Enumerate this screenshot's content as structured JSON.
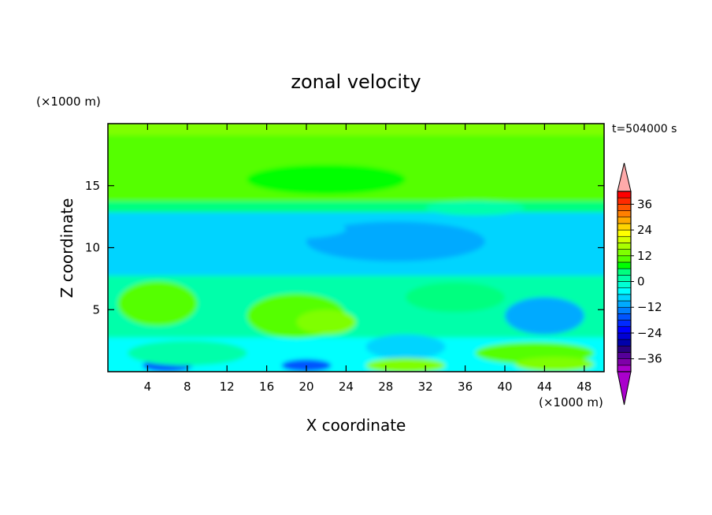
{
  "chart_data": {
    "type": "contour",
    "title": "zonal velocity",
    "xlabel": "X coordinate",
    "ylabel": "Z coordinate",
    "x_unit": "(×1000 m)",
    "y_unit": "(×1000 m)",
    "time_label": "t=504000 s",
    "xlim": [
      0,
      50
    ],
    "ylim": [
      0,
      20
    ],
    "x_ticks": [
      4,
      8,
      12,
      16,
      20,
      24,
      28,
      32,
      36,
      40,
      44,
      48
    ],
    "y_ticks": [
      5,
      10,
      15
    ],
    "colorbar": {
      "levels": [
        -42,
        -39,
        -36,
        -33,
        -30,
        -27,
        -24,
        -21,
        -18,
        -15,
        -12,
        -9,
        -6,
        -3,
        0,
        3,
        6,
        9,
        12,
        15,
        18,
        21,
        24,
        27,
        30,
        33,
        36,
        39,
        42
      ],
      "labeled_values": [
        36,
        24,
        12,
        0,
        -12,
        -24,
        -36
      ],
      "colors": [
        "#ffaaaa",
        "#ff0000",
        "#ff2a00",
        "#ff5400",
        "#ff7f00",
        "#ffa900",
        "#ffd400",
        "#ffff00",
        "#d4ff00",
        "#aaff00",
        "#7fff00",
        "#54ff00",
        "#00ff00",
        "#00ff7f",
        "#00ffaa",
        "#00ffd4",
        "#00ffff",
        "#00d4ff",
        "#00aaff",
        "#007fff",
        "#0054ff",
        "#002aff",
        "#0000ff",
        "#0000d4",
        "#0000aa",
        "#2a0080",
        "#550099",
        "#7f00aa",
        "#aa00cc"
      ],
      "top_extension_color": "#ffaaaa",
      "bottom_extension_color": "#aa00cc"
    },
    "bands": [
      {
        "z_bottom": 18.8,
        "z_top": 20.0,
        "value": 13,
        "label": "upper yellow band"
      },
      {
        "z_bottom": 13.5,
        "z_top": 18.8,
        "value": 11,
        "label": "yellow-green upper layer"
      },
      {
        "z_bottom": 12.6,
        "z_top": 13.5,
        "value": 4,
        "label": "green layer near 13 km"
      },
      {
        "z_bottom": 7.5,
        "z_top": 12.6,
        "value": -7,
        "label": "cyan mid layer"
      },
      {
        "z_bottom": 2.5,
        "z_top": 7.5,
        "value": 2,
        "label": "mixed green lower layer"
      },
      {
        "z_bottom": 0.0,
        "z_top": 2.5,
        "value": -4,
        "label": "near-surface layer"
      }
    ],
    "features": [
      {
        "x": 29,
        "z": 10.5,
        "rx": 9,
        "rz": 1.6,
        "value": -11,
        "label": "cyan core"
      },
      {
        "x": 18,
        "z": 11.5,
        "rx": 6,
        "rz": 0.8,
        "value": -8,
        "label": "cyan patch"
      },
      {
        "x": 19,
        "z": 4.5,
        "rx": 5,
        "rz": 1.8,
        "value": 10,
        "label": "yellow-green blob"
      },
      {
        "x": 22,
        "z": 4.0,
        "rx": 3,
        "rz": 1.0,
        "value": 13,
        "label": "yellow spot"
      },
      {
        "x": 5,
        "z": 5.5,
        "rx": 4,
        "rz": 1.8,
        "value": 9,
        "label": "left yellow-green patch"
      },
      {
        "x": 44,
        "z": 4.5,
        "rx": 4,
        "rz": 1.5,
        "value": -10,
        "label": "cyan patch right"
      },
      {
        "x": 30,
        "z": 2.0,
        "rx": 4,
        "rz": 1.0,
        "value": -8,
        "label": "cyan patch lower"
      },
      {
        "x": 43,
        "z": 1.5,
        "rx": 6,
        "rz": 0.9,
        "value": 11,
        "label": "lower right yellow-green"
      },
      {
        "x": 6,
        "z": 0.5,
        "rx": 2.5,
        "rz": 0.5,
        "value": -16,
        "label": "blue surface spot"
      },
      {
        "x": 20,
        "z": 0.5,
        "rx": 2.5,
        "rz": 0.5,
        "value": -16,
        "label": "blue surface spot"
      },
      {
        "x": 30,
        "z": 0.5,
        "rx": 4,
        "rz": 0.6,
        "value": 14,
        "label": "yellow surface patch"
      },
      {
        "x": 45,
        "z": 0.6,
        "rx": 4,
        "rz": 0.6,
        "value": 14,
        "label": "yellow surface patch right"
      },
      {
        "x": 8,
        "z": 1.5,
        "rx": 6,
        "rz": 1.0,
        "value": 1,
        "label": "green lower left"
      },
      {
        "x": 35,
        "z": 6.0,
        "rx": 5,
        "rz": 1.2,
        "value": 4,
        "label": "green mid right"
      },
      {
        "x": 30,
        "z": 19.6,
        "rx": 4,
        "rz": 0.5,
        "value": 14,
        "label": "top yellow patch"
      },
      {
        "x": 22,
        "z": 15.5,
        "rx": 8,
        "rz": 1.2,
        "value": 7,
        "label": "green upper patch"
      },
      {
        "x": 37,
        "z": 13.2,
        "rx": 5,
        "rz": 0.6,
        "value": 2,
        "label": "green ridge"
      }
    ]
  }
}
